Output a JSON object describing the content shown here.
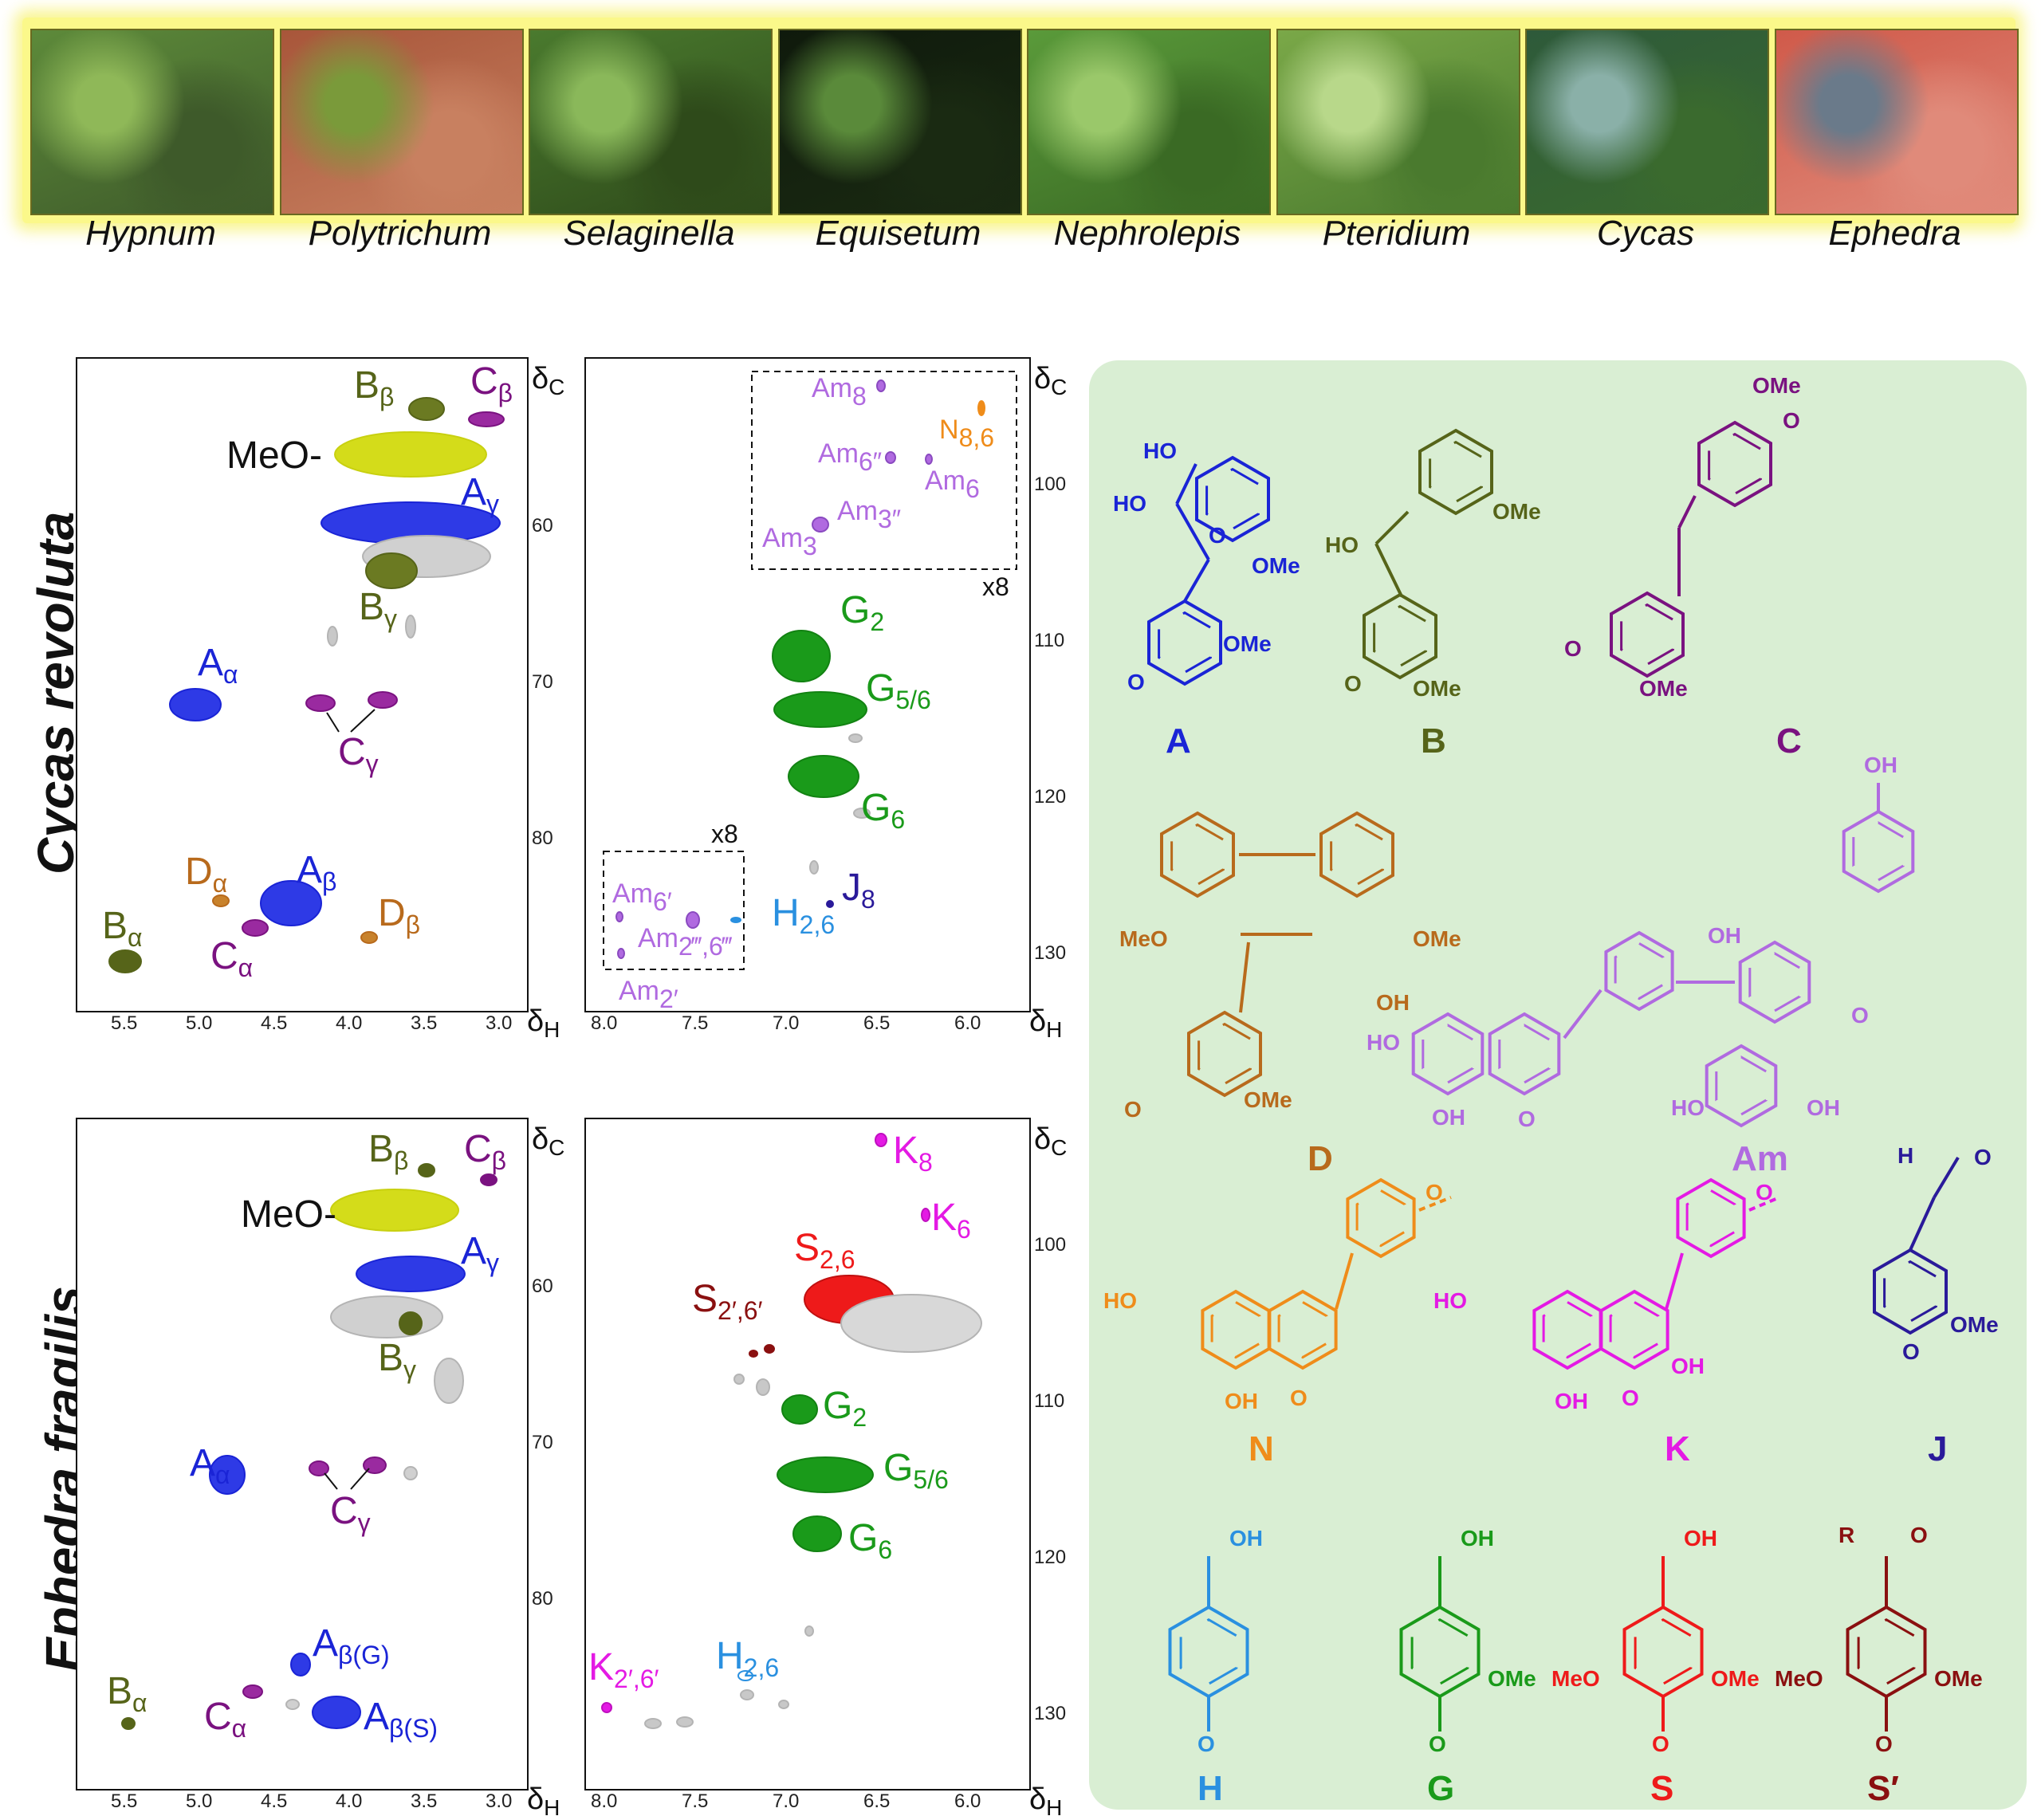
{
  "photos": [
    {
      "genus": "Hypnum",
      "colors": [
        "#5d8a3a",
        "#8fb858",
        "#3e5a2a"
      ]
    },
    {
      "genus": "Polytrichum",
      "colors": [
        "#a8563a",
        "#7a9a3a",
        "#c88060"
      ]
    },
    {
      "genus": "Selaginella",
      "colors": [
        "#4a7a2e",
        "#8ab85a",
        "#2e4a1a"
      ]
    },
    {
      "genus": "Equisetum",
      "colors": [
        "#0f1a0c",
        "#5a8a3a",
        "#1a2a12"
      ]
    },
    {
      "genus": "Nephrolepis",
      "colors": [
        "#5a9a3a",
        "#9ac86a",
        "#3a6a24"
      ]
    },
    {
      "genus": "Pteridium",
      "colors": [
        "#7aa848",
        "#b8d88a",
        "#4a7a2e"
      ]
    },
    {
      "genus": "Cycas",
      "colors": [
        "#2e5a3a",
        "#8ab0a8",
        "#3a6a2e"
      ]
    },
    {
      "genus": "Ephedra",
      "colors": [
        "#d05a4a",
        "#6a7a8a",
        "#e08a7a"
      ]
    }
  ],
  "species": {
    "top": "Cycas revoluta",
    "bottom": "Ephedra fragilis"
  },
  "axis": {
    "dH": "δH",
    "dC": "δC"
  },
  "panels": {
    "aliphatic": {
      "x_ticks": [
        "5.5",
        "5.0",
        "4.5",
        "4.0",
        "3.5",
        "3.0"
      ],
      "y_ticks": [
        "60",
        "70",
        "80"
      ]
    },
    "aromatic_top": {
      "x_ticks": [
        "8.0",
        "7.5",
        "7.0",
        "6.5",
        "6.0"
      ],
      "y_ticks": [
        "100",
        "110",
        "120",
        "130"
      ]
    },
    "aromatic_bottom": {
      "x_ticks": [
        "8.0",
        "7.5",
        "7.0",
        "6.5",
        "6.0"
      ],
      "y_ticks": [
        "100",
        "110",
        "120",
        "130"
      ]
    }
  },
  "inset_label": "x8",
  "colors": {
    "A": "#1a24d6",
    "B": "#566419",
    "C": "#7a1280",
    "D": "#b86a1c",
    "MeO": "#d4dc1a",
    "G": "#1a9a1a",
    "Am": "#b06ae0",
    "N": "#ef8c1a",
    "J": "#2a1a9a",
    "H": "#2a90e0",
    "K": "#e41ae4",
    "S": "#ee1a1a",
    "Sp": "#8a1010",
    "gray": "#b4b4b4"
  },
  "labels": {
    "A": "A",
    "B": "B",
    "C": "C",
    "D": "D",
    "G": "G",
    "H": "H",
    "J": "J",
    "K": "K",
    "N": "N",
    "S": "S",
    "Am": "Am",
    "alpha": "α",
    "beta": "β",
    "gamma": "γ",
    "MeO": "MeO-",
    "b_G": "β(G)",
    "b_S": "β(S)",
    "Am8": "8",
    "Am6pp": "6″",
    "Am6": "6",
    "Am3pp": "3″",
    "Am3": "3",
    "N86": "8,6",
    "G2": "2",
    "G56": "5/6",
    "G6": "6",
    "J8": "8",
    "H26": "2,6",
    "Am6p": "6′",
    "Am2ppp": "2‴,6‴",
    "Am2p": "2′",
    "K8": "8",
    "K6": "6",
    "S26": "2,6",
    "Sp26": "2′,6′",
    "K26": "2′,6′"
  },
  "structures": {
    "A": "A",
    "B": "B",
    "C": "C",
    "D": "D",
    "Am": "Am",
    "N": "N",
    "K": "K",
    "J": "J",
    "H": "H",
    "G": "G",
    "S": "S",
    "Sp": "S′",
    "OMe": "OMe",
    "MeO": "MeO",
    "HO": "HO",
    "OH": "OH",
    "O": "O",
    "R": "R",
    "H_ald": "H"
  }
}
